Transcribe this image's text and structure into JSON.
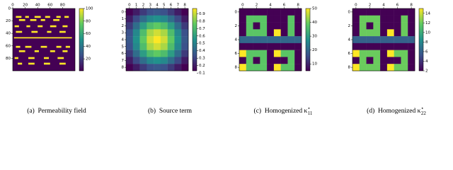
{
  "chart_data": [
    {
      "type": "inclusion-field",
      "caption": {
        "label": "(a)",
        "text": "Permeability field"
      },
      "xlim": [
        0,
        100
      ],
      "ylim": [
        0,
        100
      ],
      "xticks": [
        0,
        20,
        40,
        60,
        80
      ],
      "yticks": [
        0,
        20,
        40,
        60,
        80
      ],
      "clim": [
        1,
        100
      ],
      "cticks": [
        20,
        40,
        60,
        80,
        100
      ],
      "background_value": 1,
      "inclusion_value": 100,
      "inclusions": [
        {
          "x": 5,
          "y": 12,
          "w": 9,
          "h": 3
        },
        {
          "x": 20,
          "y": 12,
          "w": 6,
          "h": 3
        },
        {
          "x": 35,
          "y": 12,
          "w": 10,
          "h": 3
        },
        {
          "x": 52,
          "y": 12,
          "w": 8,
          "h": 3
        },
        {
          "x": 70,
          "y": 12,
          "w": 7,
          "h": 3
        },
        {
          "x": 83,
          "y": 12,
          "w": 7,
          "h": 3
        },
        {
          "x": 10,
          "y": 17,
          "w": 10,
          "h": 3
        },
        {
          "x": 28,
          "y": 17,
          "w": 10,
          "h": 3
        },
        {
          "x": 45,
          "y": 17,
          "w": 7,
          "h": 3
        },
        {
          "x": 65,
          "y": 17,
          "w": 10,
          "h": 3
        },
        {
          "x": 3,
          "y": 27,
          "w": 7,
          "h": 3
        },
        {
          "x": 22,
          "y": 27,
          "w": 6,
          "h": 3
        },
        {
          "x": 40,
          "y": 27,
          "w": 8,
          "h": 3
        },
        {
          "x": 60,
          "y": 27,
          "w": 10,
          "h": 3
        },
        {
          "x": 80,
          "y": 27,
          "w": 8,
          "h": 3
        },
        {
          "x": 5,
          "y": 36,
          "w": 10,
          "h": 3
        },
        {
          "x": 30,
          "y": 36,
          "w": 10,
          "h": 3
        },
        {
          "x": 55,
          "y": 36,
          "w": 7,
          "h": 3
        },
        {
          "x": 75,
          "y": 36,
          "w": 10,
          "h": 3
        },
        {
          "x": 2,
          "y": 46,
          "w": 93,
          "h": 2
        },
        {
          "x": 5,
          "y": 60,
          "w": 7,
          "h": 3
        },
        {
          "x": 20,
          "y": 60,
          "w": 10,
          "h": 3
        },
        {
          "x": 45,
          "y": 60,
          "w": 10,
          "h": 3
        },
        {
          "x": 70,
          "y": 60,
          "w": 8,
          "h": 3
        },
        {
          "x": 85,
          "y": 60,
          "w": 7,
          "h": 3
        },
        {
          "x": 10,
          "y": 67,
          "w": 10,
          "h": 3
        },
        {
          "x": 35,
          "y": 67,
          "w": 7,
          "h": 3
        },
        {
          "x": 60,
          "y": 67,
          "w": 8,
          "h": 3
        },
        {
          "x": 80,
          "y": 67,
          "w": 8,
          "h": 3
        },
        {
          "x": 3,
          "y": 78,
          "w": 6,
          "h": 3
        },
        {
          "x": 25,
          "y": 78,
          "w": 10,
          "h": 3
        },
        {
          "x": 50,
          "y": 78,
          "w": 8,
          "h": 3
        },
        {
          "x": 72,
          "y": 78,
          "w": 10,
          "h": 3
        },
        {
          "x": 8,
          "y": 87,
          "w": 7,
          "h": 3
        },
        {
          "x": 25,
          "y": 87,
          "w": 10,
          "h": 3
        },
        {
          "x": 50,
          "y": 87,
          "w": 10,
          "h": 3
        },
        {
          "x": 75,
          "y": 87,
          "w": 10,
          "h": 3
        }
      ]
    },
    {
      "type": "heatmap",
      "caption": {
        "label": "(b)",
        "text": "Source term"
      },
      "xlim": [
        -0.5,
        8.5
      ],
      "ylim": [
        -0.5,
        8.5
      ],
      "xticks": [
        0,
        1,
        2,
        3,
        4,
        5,
        6,
        7,
        8
      ],
      "yticks": [
        0,
        1,
        2,
        3,
        4,
        5,
        6,
        7,
        8
      ],
      "clim": [
        0.13,
        0.97
      ],
      "cticks": [
        0.1,
        0.2,
        0.3,
        0.4,
        0.5,
        0.6,
        0.7,
        0.8,
        0.9
      ],
      "matrix": [
        [
          0.13,
          0.2,
          0.28,
          0.34,
          0.36,
          0.34,
          0.28,
          0.2,
          0.13
        ],
        [
          0.2,
          0.32,
          0.43,
          0.52,
          0.55,
          0.52,
          0.43,
          0.32,
          0.2
        ],
        [
          0.28,
          0.43,
          0.59,
          0.71,
          0.76,
          0.71,
          0.59,
          0.43,
          0.28
        ],
        [
          0.34,
          0.52,
          0.71,
          0.86,
          0.91,
          0.86,
          0.71,
          0.52,
          0.34
        ],
        [
          0.36,
          0.55,
          0.76,
          0.91,
          0.97,
          0.91,
          0.76,
          0.55,
          0.36
        ],
        [
          0.34,
          0.52,
          0.71,
          0.86,
          0.91,
          0.86,
          0.71,
          0.52,
          0.34
        ],
        [
          0.28,
          0.43,
          0.59,
          0.71,
          0.76,
          0.71,
          0.59,
          0.43,
          0.28
        ],
        [
          0.2,
          0.32,
          0.43,
          0.52,
          0.55,
          0.52,
          0.43,
          0.32,
          0.2
        ],
        [
          0.13,
          0.2,
          0.28,
          0.34,
          0.36,
          0.34,
          0.28,
          0.2,
          0.13
        ]
      ]
    },
    {
      "type": "heatmap",
      "caption": {
        "label": "(c)",
        "text": "Homogenized κ",
        "sup": "⋆",
        "sub": "11"
      },
      "xlim": [
        -0.5,
        8.5
      ],
      "ylim": [
        -0.5,
        8.5
      ],
      "xticks": [
        0,
        2,
        4,
        6,
        8
      ],
      "yticks": [
        0,
        2,
        4,
        6,
        8
      ],
      "clim": [
        5,
        50
      ],
      "cticks": [
        10,
        20,
        30,
        40,
        50
      ],
      "matrix": [
        [
          5,
          5,
          5,
          5,
          5,
          5,
          5,
          5,
          5
        ],
        [
          5,
          38,
          38,
          38,
          5,
          5,
          5,
          38,
          5
        ],
        [
          5,
          38,
          5,
          38,
          5,
          5,
          5,
          38,
          5
        ],
        [
          5,
          38,
          38,
          38,
          5,
          50,
          5,
          38,
          5
        ],
        [
          20,
          20,
          20,
          20,
          20,
          20,
          20,
          20,
          20
        ],
        [
          5,
          5,
          5,
          5,
          5,
          5,
          5,
          5,
          5
        ],
        [
          50,
          38,
          38,
          38,
          5,
          50,
          38,
          38,
          5
        ],
        [
          5,
          38,
          5,
          38,
          5,
          5,
          5,
          38,
          5
        ],
        [
          50,
          38,
          38,
          38,
          5,
          50,
          38,
          38,
          5
        ]
      ]
    },
    {
      "type": "heatmap",
      "caption": {
        "label": "(d)",
        "text": "Homogenized κ",
        "sup": "⋆",
        "sub": "22"
      },
      "xlim": [
        -0.5,
        8.5
      ],
      "ylim": [
        -0.5,
        8.5
      ],
      "xticks": [
        0,
        2,
        4,
        6,
        8
      ],
      "yticks": [
        0,
        2,
        4,
        6,
        8
      ],
      "clim": [
        2,
        15
      ],
      "cticks": [
        2,
        4,
        6,
        8,
        10,
        12,
        14
      ],
      "matrix": [
        [
          2,
          2,
          2,
          2,
          2,
          2,
          2,
          2,
          2
        ],
        [
          2,
          12,
          12,
          12,
          2,
          2,
          2,
          12,
          2
        ],
        [
          2,
          12,
          2,
          12,
          2,
          2,
          2,
          12,
          2
        ],
        [
          2,
          12,
          12,
          12,
          2,
          15,
          2,
          12,
          2
        ],
        [
          6,
          6,
          6,
          6,
          6,
          6,
          6,
          6,
          6
        ],
        [
          2,
          2,
          2,
          2,
          2,
          2,
          2,
          2,
          2
        ],
        [
          15,
          12,
          12,
          12,
          2,
          15,
          12,
          12,
          2
        ],
        [
          2,
          12,
          2,
          12,
          2,
          2,
          2,
          12,
          2
        ],
        [
          15,
          12,
          12,
          12,
          2,
          15,
          12,
          12,
          2
        ]
      ]
    }
  ]
}
